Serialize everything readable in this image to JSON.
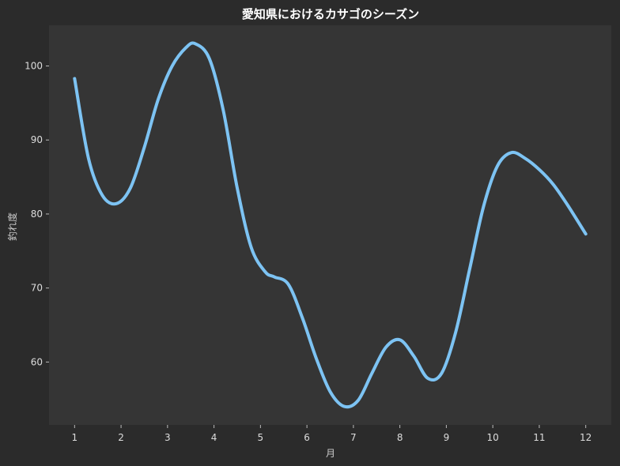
{
  "chart_data": {
    "type": "line",
    "title": "愛知県におけるカサゴのシーズン",
    "xlabel": "月",
    "ylabel": "釣れ度",
    "x": [
      1,
      2,
      3,
      4,
      5,
      6,
      7,
      8,
      9,
      10,
      11,
      12
    ],
    "xlim": [
      0.45,
      12.55
    ],
    "ylim": [
      51.5,
      105.5
    ],
    "yticks": [
      60,
      70,
      80,
      90,
      100
    ],
    "grid": false,
    "legend": "none",
    "series": [
      {
        "curve": [
          [
            1,
            98.3
          ],
          [
            1.3,
            87.5
          ],
          [
            1.6,
            82.5
          ],
          [
            1.9,
            81.4
          ],
          [
            2.2,
            83.5
          ],
          [
            2.5,
            89.0
          ],
          [
            2.8,
            95.5
          ],
          [
            3.1,
            100.0
          ],
          [
            3.4,
            102.5
          ],
          [
            3.6,
            103.0
          ],
          [
            3.9,
            101.0
          ],
          [
            4.2,
            94.0
          ],
          [
            4.5,
            83.5
          ],
          [
            4.8,
            75.5
          ],
          [
            5.1,
            72.2
          ],
          [
            5.3,
            71.5
          ],
          [
            5.6,
            70.5
          ],
          [
            5.9,
            66.0
          ],
          [
            6.2,
            60.5
          ],
          [
            6.5,
            56.0
          ],
          [
            6.8,
            54.0
          ],
          [
            7.1,
            54.8
          ],
          [
            7.4,
            58.5
          ],
          [
            7.7,
            62.0
          ],
          [
            8.0,
            63.0
          ],
          [
            8.3,
            60.8
          ],
          [
            8.6,
            57.8
          ],
          [
            8.9,
            58.5
          ],
          [
            9.2,
            64.0
          ],
          [
            9.5,
            72.5
          ],
          [
            9.8,
            81.0
          ],
          [
            10.1,
            86.5
          ],
          [
            10.4,
            88.3
          ],
          [
            10.7,
            87.5
          ],
          [
            11.0,
            86.0
          ],
          [
            11.3,
            84.0
          ],
          [
            11.6,
            81.3
          ],
          [
            12.0,
            77.3
          ]
        ]
      }
    ],
    "colors": {
      "figure_background": "#2b2b2b",
      "plot_background": "#353535",
      "line": "#7dc3f3",
      "text": "#dddddd"
    }
  }
}
